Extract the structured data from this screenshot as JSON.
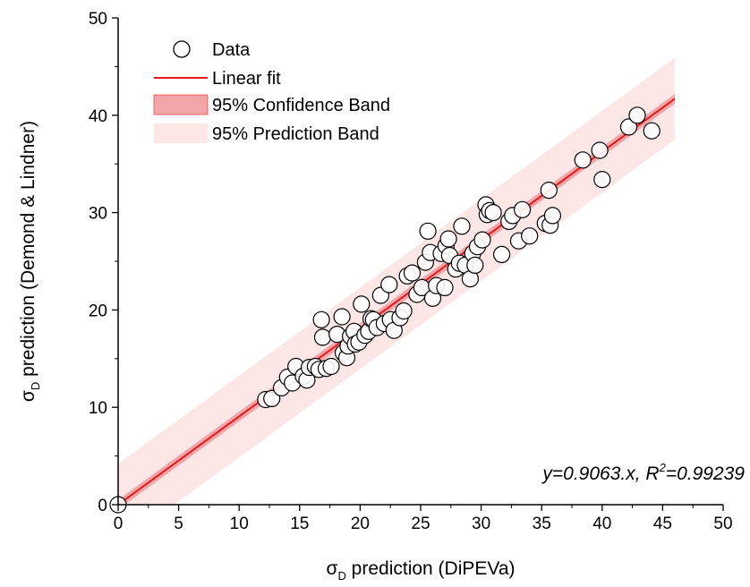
{
  "chart_data": {
    "type": "scatter",
    "title": "",
    "xlabel": {
      "symbol": "σ",
      "sub": "D",
      "text": " prediction (DiPEVa)"
    },
    "ylabel": {
      "symbol": "σ",
      "sub": "D",
      "text": " prediction (Demond & Lindner)"
    },
    "xlim": [
      0,
      50
    ],
    "ylim": [
      0,
      50
    ],
    "xticks": [
      0,
      5,
      10,
      15,
      20,
      25,
      30,
      35,
      40,
      45,
      50
    ],
    "yticks": [
      0,
      10,
      20,
      30,
      40,
      50
    ],
    "legend": {
      "placement": "top-left",
      "items": [
        {
          "label": "Data",
          "kind": "marker"
        },
        {
          "label": "Linear fit",
          "kind": "line"
        },
        {
          "label": "95% Confidence Band",
          "kind": "conf-band"
        },
        {
          "label": "95% Prediction Band",
          "kind": "pred-band"
        }
      ]
    },
    "equation": {
      "prefix": "y=0.9063.x, ",
      "r": "R",
      "sup": "2",
      "suffix": "=0.99239"
    },
    "fit": {
      "slope": 0.9063,
      "x_range": [
        0,
        46
      ],
      "pred_half_width": 4.2,
      "conf_half_width": 0.5
    },
    "colors": {
      "fit_line": "#e8191e",
      "conf_band": "#f4a5a8",
      "pred_band": "#fde6e6",
      "marker_edge": "#000000"
    },
    "series": [
      {
        "name": "Data",
        "points": [
          [
            0,
            0
          ],
          [
            12.2,
            10.8
          ],
          [
            12.7,
            10.9
          ],
          [
            13.5,
            12.0
          ],
          [
            14.0,
            13.1
          ],
          [
            14.4,
            12.5
          ],
          [
            14.7,
            14.2
          ],
          [
            15.3,
            13.2
          ],
          [
            15.6,
            12.8
          ],
          [
            15.8,
            14.1
          ],
          [
            16.3,
            14.2
          ],
          [
            16.6,
            13.9
          ],
          [
            16.8,
            19.0
          ],
          [
            16.9,
            17.2
          ],
          [
            17.2,
            14.0
          ],
          [
            17.6,
            14.2
          ],
          [
            18.1,
            17.5
          ],
          [
            18.5,
            19.3
          ],
          [
            18.6,
            15.6
          ],
          [
            18.9,
            15.1
          ],
          [
            19.0,
            16.3
          ],
          [
            19.2,
            17.3
          ],
          [
            19.5,
            17.8
          ],
          [
            19.6,
            16.5
          ],
          [
            19.9,
            16.7
          ],
          [
            20.1,
            20.6
          ],
          [
            20.4,
            17.4
          ],
          [
            20.7,
            17.8
          ],
          [
            20.9,
            19.1
          ],
          [
            21.1,
            19.0
          ],
          [
            21.4,
            18.2
          ],
          [
            21.7,
            21.5
          ],
          [
            22.0,
            18.6
          ],
          [
            22.4,
            22.6
          ],
          [
            22.5,
            19.0
          ],
          [
            22.8,
            17.9
          ],
          [
            23.3,
            19.2
          ],
          [
            23.6,
            19.9
          ],
          [
            23.9,
            23.5
          ],
          [
            24.3,
            23.8
          ],
          [
            24.7,
            21.6
          ],
          [
            25.1,
            22.3
          ],
          [
            25.4,
            24.9
          ],
          [
            25.6,
            28.1
          ],
          [
            25.8,
            25.9
          ],
          [
            26.0,
            21.2
          ],
          [
            26.3,
            22.5
          ],
          [
            26.7,
            25.8
          ],
          [
            27.0,
            22.3
          ],
          [
            27.1,
            26.6
          ],
          [
            27.3,
            27.3
          ],
          [
            27.4,
            25.6
          ],
          [
            27.9,
            24.2
          ],
          [
            28.2,
            24.8
          ],
          [
            28.4,
            28.6
          ],
          [
            28.7,
            24.6
          ],
          [
            29.1,
            23.2
          ],
          [
            29.3,
            25.8
          ],
          [
            29.5,
            24.6
          ],
          [
            29.7,
            26.5
          ],
          [
            30.1,
            27.2
          ],
          [
            30.4,
            30.8
          ],
          [
            30.5,
            29.8
          ],
          [
            30.7,
            30.2
          ],
          [
            31.0,
            30.0
          ],
          [
            31.7,
            25.7
          ],
          [
            32.3,
            29.1
          ],
          [
            32.6,
            29.7
          ],
          [
            33.1,
            27.1
          ],
          [
            33.4,
            30.3
          ],
          [
            34.0,
            27.6
          ],
          [
            35.3,
            28.9
          ],
          [
            35.6,
            32.3
          ],
          [
            35.7,
            28.7
          ],
          [
            35.9,
            29.7
          ],
          [
            38.4,
            35.4
          ],
          [
            39.8,
            36.4
          ],
          [
            40.0,
            33.4
          ],
          [
            42.2,
            38.8
          ],
          [
            42.9,
            40.0
          ],
          [
            44.1,
            38.4
          ]
        ]
      }
    ]
  }
}
